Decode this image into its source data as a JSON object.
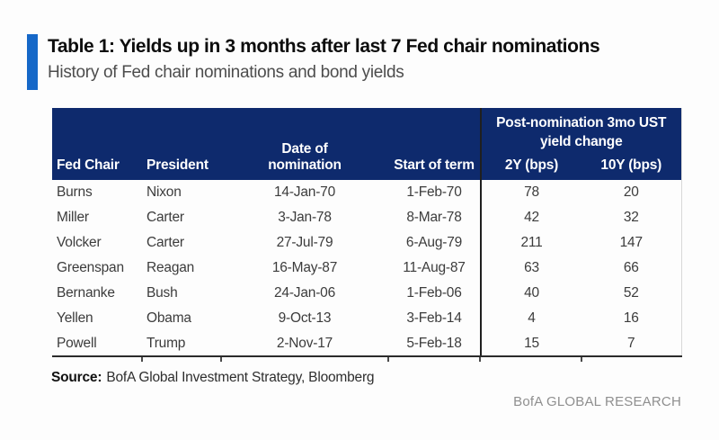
{
  "colors": {
    "accent_bar": "#1668c8",
    "header_bg": "#0e2a6d",
    "divider": "#1f1f1f",
    "brand_text": "#8f8f8f"
  },
  "header": {
    "title": "Table 1: Yields up in 3 months after last 7 Fed chair nominations",
    "subtitle": "History of Fed chair nominations and bond yields"
  },
  "chart_data": {
    "type": "table",
    "title": "Table 1: Yields up in 3 months after last 7 Fed chair nominations",
    "subtitle": "History of Fed chair nominations and bond yields",
    "group_header": {
      "line1": "Post-nomination 3mo UST",
      "line2": "yield change",
      "spans_columns": [
        "2Y (bps)",
        "10Y (bps)"
      ]
    },
    "columns": [
      {
        "label": "Fed Chair"
      },
      {
        "label": "President"
      },
      {
        "label": "Date of",
        "label2": "nomination"
      },
      {
        "label": "Start of term"
      },
      {
        "label": "2Y (bps)"
      },
      {
        "label": "10Y (bps)"
      }
    ],
    "rows": [
      [
        "Burns",
        "Nixon",
        "14-Jan-70",
        "1-Feb-70",
        "78",
        "20"
      ],
      [
        "Miller",
        "Carter",
        "3-Jan-78",
        "8-Mar-78",
        "42",
        "32"
      ],
      [
        "Volcker",
        "Carter",
        "27-Jul-79",
        "6-Aug-79",
        "211",
        "147"
      ],
      [
        "Greenspan",
        "Reagan",
        "16-May-87",
        "11-Aug-87",
        "63",
        "66"
      ],
      [
        "Bernanke",
        "Bush",
        "24-Jan-06",
        "1-Feb-06",
        "40",
        "52"
      ],
      [
        "Yellen",
        "Obama",
        "9-Oct-13",
        "3-Feb-14",
        "4",
        "16"
      ],
      [
        "Powell",
        "Trump",
        "2-Nov-17",
        "5-Feb-18",
        "15",
        "7"
      ]
    ]
  },
  "footer": {
    "source_label": "Source:",
    "source_text": "BofA Global Investment Strategy, Bloomberg",
    "brand": "BofA GLOBAL RESEARCH"
  }
}
